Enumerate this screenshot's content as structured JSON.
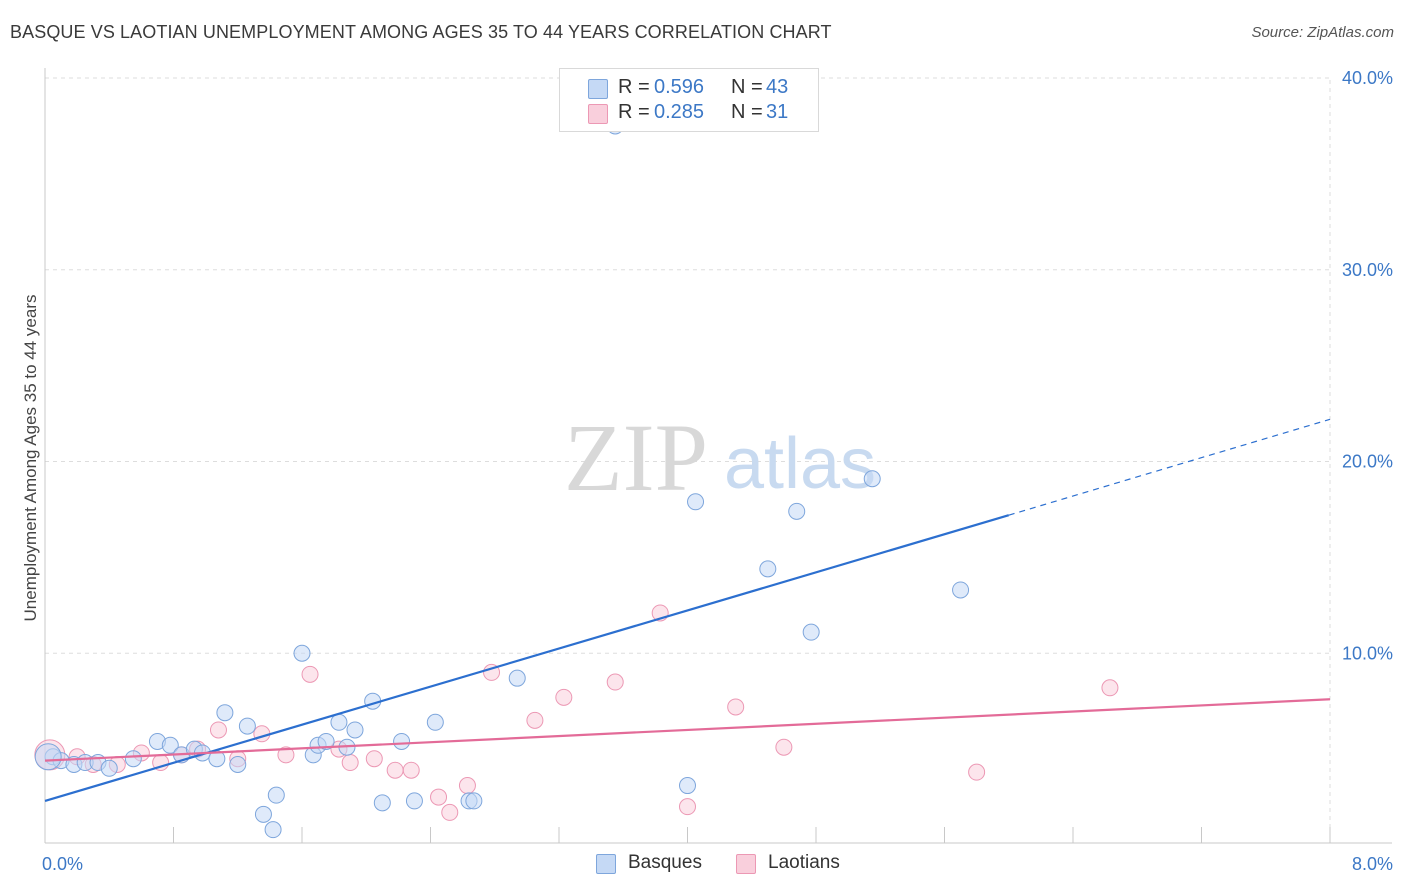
{
  "title": "BASQUE VS LAOTIAN UNEMPLOYMENT AMONG AGES 35 TO 44 YEARS CORRELATION CHART",
  "source": "Source: ZipAtlas.com",
  "watermark": {
    "zip": "ZIP",
    "atlas": "atlas"
  },
  "legend": {
    "r_label": "R =",
    "n_label": "N =",
    "basques": {
      "r": "0.596",
      "n": "43"
    },
    "laotians": {
      "r": "0.285",
      "n": "31"
    }
  },
  "bottom_legend": {
    "basques": "Basques",
    "laotians": "Laotians"
  },
  "colors": {
    "basque_fill": "#c5d9f5",
    "basque_stroke": "#7ea6dc",
    "basque_line": "#2c6fcf",
    "laotian_fill": "#f9cfdc",
    "laotian_stroke": "#ec98b4",
    "laotian_line": "#e36b98",
    "axis_label": "#3c78c6",
    "grid": "#dddddd"
  },
  "chart_data": {
    "type": "scatter",
    "title": "BASQUE VS LAOTIAN UNEMPLOYMENT AMONG AGES 35 TO 44 YEARS CORRELATION CHART",
    "xlabel": "",
    "ylabel": "Unemployment Among Ages 35 to 44 years",
    "xlim": [
      0,
      8
    ],
    "ylim": [
      0,
      40
    ],
    "x_tick_labels": [
      {
        "value": 0,
        "label": "0.0%"
      },
      {
        "value": 8,
        "label": "8.0%"
      }
    ],
    "y_tick_labels": [
      {
        "value": 10,
        "label": "10.0%"
      },
      {
        "value": 20,
        "label": "20.0%"
      },
      {
        "value": 30,
        "label": "30.0%"
      },
      {
        "value": 40,
        "label": "40.0%"
      }
    ],
    "series": [
      {
        "name": "Basques",
        "r": 0.596,
        "n": 43,
        "trend": {
          "x0": 0,
          "y0": 2.3,
          "x1": 6.0,
          "y1": 17.2,
          "dash_to_x": 8.0,
          "dash_to_y": 22.2
        },
        "points": [
          [
            0.05,
            4.6
          ],
          [
            0.1,
            4.4
          ],
          [
            0.18,
            4.2
          ],
          [
            0.25,
            4.3
          ],
          [
            0.33,
            4.3
          ],
          [
            0.4,
            4.0
          ],
          [
            0.55,
            4.5
          ],
          [
            0.7,
            5.4
          ],
          [
            0.78,
            5.2
          ],
          [
            0.85,
            4.7
          ],
          [
            0.93,
            5.0
          ],
          [
            0.98,
            4.8
          ],
          [
            1.07,
            4.5
          ],
          [
            1.12,
            6.9
          ],
          [
            1.2,
            4.2
          ],
          [
            1.26,
            6.2
          ],
          [
            1.36,
            1.6
          ],
          [
            1.42,
            0.8
          ],
          [
            1.44,
            2.6
          ],
          [
            1.6,
            10.0
          ],
          [
            1.67,
            4.7
          ],
          [
            1.7,
            5.2
          ],
          [
            1.75,
            5.4
          ],
          [
            1.83,
            6.4
          ],
          [
            1.88,
            5.1
          ],
          [
            1.93,
            6.0
          ],
          [
            2.04,
            7.5
          ],
          [
            2.1,
            2.2
          ],
          [
            2.22,
            5.4
          ],
          [
            2.3,
            2.3
          ],
          [
            2.43,
            6.4
          ],
          [
            2.64,
            2.3
          ],
          [
            2.67,
            2.3
          ],
          [
            2.94,
            8.7
          ],
          [
            3.55,
            37.5
          ],
          [
            4.0,
            3.1
          ],
          [
            4.05,
            17.9
          ],
          [
            4.5,
            14.4
          ],
          [
            4.68,
            17.4
          ],
          [
            4.77,
            11.1
          ],
          [
            5.15,
            19.1
          ],
          [
            5.7,
            13.3
          ],
          [
            0.02,
            4.6
          ]
        ]
      },
      {
        "name": "Laotians",
        "r": 0.285,
        "n": 31,
        "trend": {
          "x0": 0,
          "y0": 4.4,
          "x1": 8.0,
          "y1": 7.6
        },
        "points": [
          [
            0.03,
            4.7
          ],
          [
            0.2,
            4.6
          ],
          [
            0.3,
            4.2
          ],
          [
            0.45,
            4.2
          ],
          [
            0.6,
            4.8
          ],
          [
            0.72,
            4.3
          ],
          [
            0.85,
            4.7
          ],
          [
            0.95,
            5.0
          ],
          [
            1.08,
            6.0
          ],
          [
            1.2,
            4.5
          ],
          [
            1.35,
            5.8
          ],
          [
            1.5,
            4.7
          ],
          [
            1.65,
            8.9
          ],
          [
            1.83,
            5.0
          ],
          [
            1.9,
            4.3
          ],
          [
            2.05,
            4.5
          ],
          [
            2.18,
            3.9
          ],
          [
            2.28,
            3.9
          ],
          [
            2.45,
            2.5
          ],
          [
            2.52,
            1.7
          ],
          [
            2.63,
            3.1
          ],
          [
            2.78,
            9.0
          ],
          [
            3.05,
            6.5
          ],
          [
            3.23,
            7.7
          ],
          [
            3.55,
            8.5
          ],
          [
            3.83,
            12.1
          ],
          [
            4.0,
            2.0
          ],
          [
            4.3,
            7.2
          ],
          [
            4.6,
            5.1
          ],
          [
            5.8,
            3.8
          ],
          [
            6.63,
            8.2
          ]
        ]
      }
    ]
  }
}
